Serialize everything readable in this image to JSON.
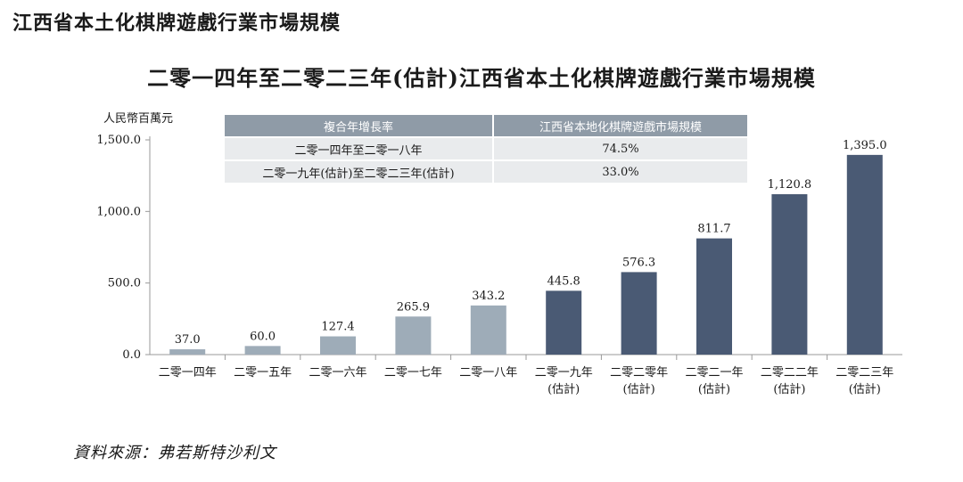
{
  "header": {
    "section_title": "江西省本土化棋牌遊戲行業市場規模"
  },
  "chart_data": {
    "type": "bar",
    "title": "二零一四年至二零二三年(估計)江西省本土化棋牌遊戲行業市場規模",
    "ylabel": "人民幣百萬元",
    "xlabel": "",
    "ylim": [
      0,
      1500
    ],
    "yticks": [
      "0.0",
      "500.0",
      "1,000.0",
      "1,500.0"
    ],
    "categories": [
      [
        "二零一四年"
      ],
      [
        "二零一五年"
      ],
      [
        "二零一六年"
      ],
      [
        "二零一七年"
      ],
      [
        "二零一八年"
      ],
      [
        "二零一九年",
        "(估計)"
      ],
      [
        "二零二零年",
        "(估計)"
      ],
      [
        "二零二一年",
        "(估計)"
      ],
      [
        "二零二二年",
        "(估計)"
      ],
      [
        "二零二三年",
        "(估計)"
      ]
    ],
    "values": [
      37.0,
      60.0,
      127.4,
      265.9,
      343.2,
      445.8,
      576.3,
      811.7,
      1120.8,
      1395.0
    ],
    "value_labels": [
      "37.0",
      "60.0",
      "127.4",
      "265.9",
      "343.2",
      "445.8",
      "576.3",
      "811.7",
      "1,120.8",
      "1,395.0"
    ],
    "colors": {
      "actual": "#9eacb8",
      "estimate": "#4a5a74",
      "axis": "#999999"
    },
    "grid": false,
    "legend": "none"
  },
  "cagr_table": {
    "headers": [
      "複合年增長率",
      "江西省本地化棋牌遊戲市場規模"
    ],
    "rows": [
      {
        "period": "二零一四年至二零一八年",
        "value": "74.5%"
      },
      {
        "period": "二零一九年(估計)至二零二三年(估計)",
        "value": "33.0%"
      }
    ]
  },
  "footer": {
    "source": "資料來源：弗若斯特沙利文"
  }
}
